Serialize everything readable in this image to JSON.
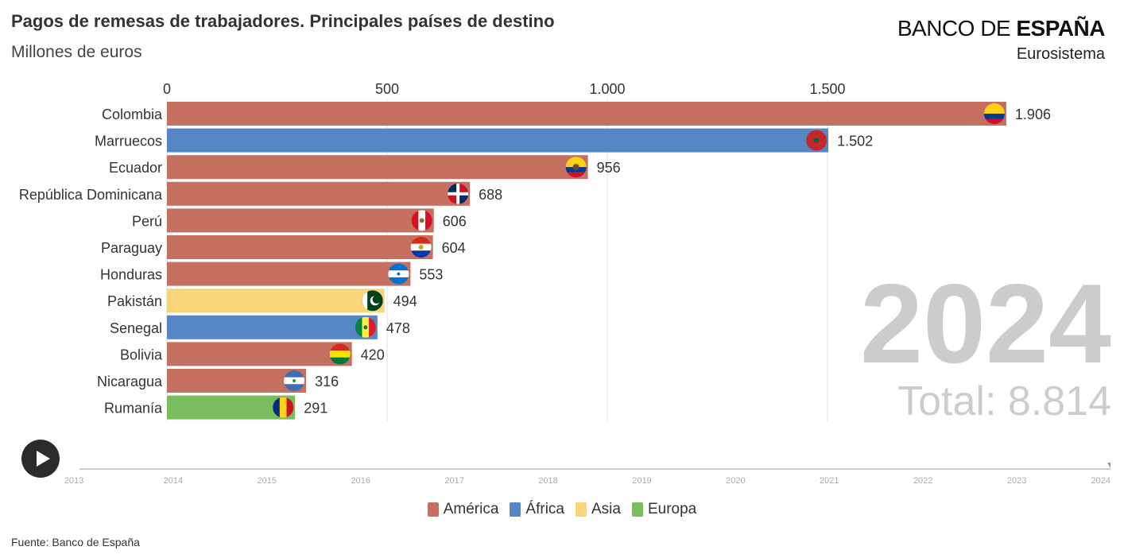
{
  "header": {
    "title": "Pagos de remesas de trabajadores. Principales países de destino",
    "subtitle": "Millones de euros",
    "brand_light": "BANCO DE ",
    "brand_bold": "ESPAÑA",
    "brand_sub": "Eurosistema"
  },
  "overlay": {
    "year": "2024",
    "total": "Total: 8.814"
  },
  "footer": {
    "source": "Fuente: Banco de España"
  },
  "colors": {
    "América": "#c46f60",
    "África": "#5687c4",
    "Asia": "#f9d57a",
    "Europa": "#79bd5e"
  },
  "timeline": {
    "years": [
      "2013",
      "2014",
      "2015",
      "2016",
      "2017",
      "2018",
      "2019",
      "2020",
      "2021",
      "2022",
      "2023",
      "2024"
    ],
    "current": "2024"
  },
  "legend": [
    {
      "label": "América",
      "color": "#c46f60"
    },
    {
      "label": "África",
      "color": "#5687c4"
    },
    {
      "label": "Asia",
      "color": "#f9d57a"
    },
    {
      "label": "Europa",
      "color": "#79bd5e"
    }
  ],
  "chart_data": {
    "type": "bar",
    "orientation": "horizontal",
    "xlim": [
      0,
      1850
    ],
    "xticks": [
      0,
      500,
      1000,
      1500
    ],
    "xtick_labels": [
      "0",
      "500",
      "1.000",
      "1.500"
    ],
    "grid": true,
    "categories": [
      "Colombia",
      "Marruecos",
      "Ecuador",
      "República Dominicana",
      "Perú",
      "Paraguay",
      "Honduras",
      "Pakistán",
      "Senegal",
      "Bolivia",
      "Nicaragua",
      "Rumanía"
    ],
    "values": [
      1906,
      1502,
      956,
      688,
      606,
      604,
      553,
      494,
      478,
      420,
      316,
      291
    ],
    "value_labels": [
      "1.906",
      "1.502",
      "956",
      "688",
      "606",
      "604",
      "553",
      "494",
      "478",
      "420",
      "316",
      "291"
    ],
    "regions": [
      "América",
      "África",
      "América",
      "América",
      "América",
      "América",
      "América",
      "Asia",
      "África",
      "América",
      "América",
      "Europa"
    ],
    "flags": [
      "colombia-flag",
      "morocco-flag",
      "ecuador-flag",
      "dominican-republic-flag",
      "peru-flag",
      "paraguay-flag",
      "honduras-flag",
      "pakistan-flag",
      "senegal-flag",
      "bolivia-flag",
      "nicaragua-flag",
      "romania-flag"
    ]
  }
}
